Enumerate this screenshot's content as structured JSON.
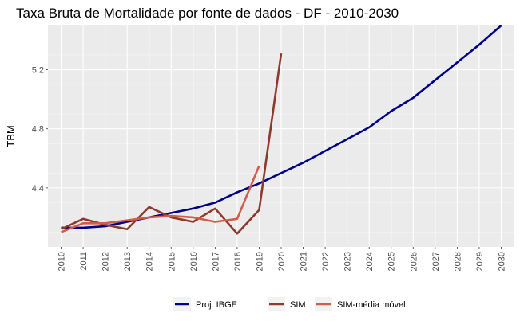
{
  "chart_data": {
    "type": "line",
    "title": "Taxa Bruta de Mortalidade por fonte de dados - DF - 2010-2030",
    "xlabel": "",
    "ylabel": "TBM",
    "ylim": [
      4.0,
      5.5
    ],
    "y_ticks": [
      "4.4",
      "4.8",
      "5.2"
    ],
    "x_ticks": [
      "2010",
      "2011",
      "2012",
      "2013",
      "2014",
      "2015",
      "2016",
      "2017",
      "2018",
      "2019",
      "2020",
      "2021",
      "2022",
      "2023",
      "2024",
      "2025",
      "2026",
      "2027",
      "2028",
      "2029",
      "2030"
    ],
    "grid": true,
    "legend_position": "bottom",
    "series": [
      {
        "name": "Proj. IBGE",
        "color": "#00008b",
        "x": [
          2010,
          2011,
          2012,
          2013,
          2014,
          2015,
          2016,
          2017,
          2018,
          2019,
          2020,
          2021,
          2022,
          2023,
          2024,
          2025,
          2026,
          2027,
          2028,
          2029,
          2030
        ],
        "values": [
          4.13,
          4.13,
          4.14,
          4.17,
          4.2,
          4.23,
          4.26,
          4.3,
          4.37,
          4.43,
          4.5,
          4.57,
          4.65,
          4.73,
          4.81,
          4.92,
          5.01,
          5.13,
          5.25,
          5.37,
          5.5
        ]
      },
      {
        "name": "SIM",
        "color": "#8b3a2b",
        "x": [
          2010,
          2011,
          2012,
          2013,
          2014,
          2015,
          2016,
          2017,
          2018,
          2019,
          2020
        ],
        "values": [
          4.12,
          4.19,
          4.15,
          4.12,
          4.27,
          4.2,
          4.17,
          4.26,
          4.09,
          4.25,
          5.31
        ]
      },
      {
        "name": "SIM-média móvel",
        "color": "#d05c4a",
        "x": [
          2010,
          2011,
          2012,
          2013,
          2014,
          2015,
          2016,
          2017,
          2018,
          2019
        ],
        "values": [
          4.1,
          4.16,
          4.16,
          4.18,
          4.2,
          4.21,
          4.2,
          4.17,
          4.19,
          4.55
        ]
      }
    ]
  }
}
